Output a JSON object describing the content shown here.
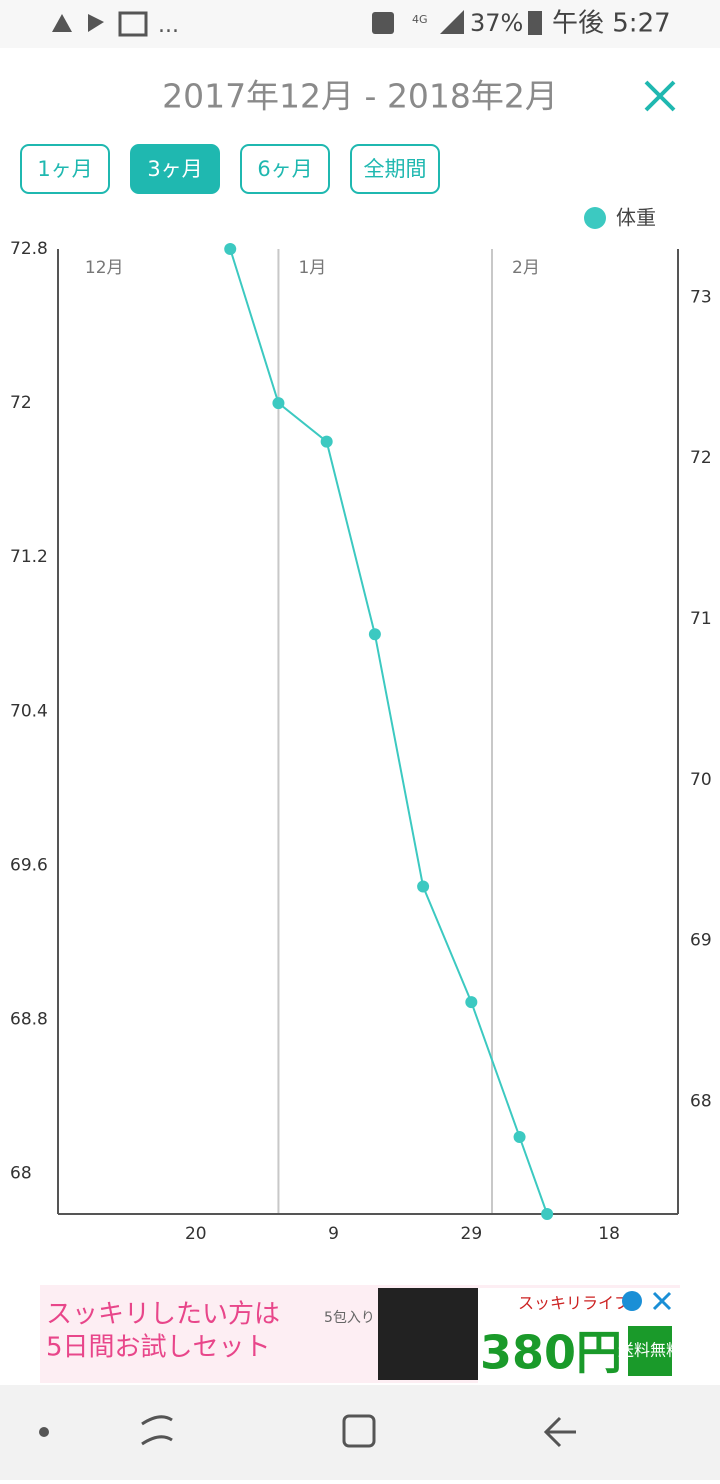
{
  "status_bar": {
    "more": "...",
    "network": "4G",
    "battery": "37%",
    "time": "午後 5:27"
  },
  "header": {
    "title": "2017年12月 - 2018年2月"
  },
  "range_tabs": [
    {
      "label": "1ヶ月",
      "selected": false
    },
    {
      "label": "3ヶ月",
      "selected": true
    },
    {
      "label": "6ヶ月",
      "selected": false
    },
    {
      "label": "全期間",
      "selected": false
    }
  ],
  "chart_data": {
    "type": "line",
    "x": [
      "2017-12-25",
      "2018-01-01",
      "2018-01-08",
      "2018-01-15",
      "2018-01-22",
      "2018-01-29",
      "2018-02-05",
      "2018-02-09"
    ],
    "series": [
      {
        "name": "体重",
        "color": "#3cc9c1",
        "values": [
          72.8,
          72.0,
          71.8,
          70.8,
          69.49,
          68.89,
          68.19,
          67.79
        ]
      }
    ],
    "xlim": [
      "2017-11-30",
      "2018-02-28"
    ],
    "xticks": [
      {
        "value": "2017-12-20",
        "label": "20"
      },
      {
        "value": "2018-01-09",
        "label": "9"
      },
      {
        "value": "2018-01-29",
        "label": "29"
      },
      {
        "value": "2018-02-18",
        "label": "18"
      }
    ],
    "month_labels": [
      {
        "value": "2017-12-01",
        "label": "12月"
      },
      {
        "value": "2018-01-01",
        "label": "1月"
      },
      {
        "value": "2018-02-01",
        "label": "2月"
      }
    ],
    "ylim": [
      67.79,
      72.8
    ],
    "yticks": [
      72.8,
      72.0,
      71.2,
      70.4,
      69.6,
      68.8,
      68.0
    ],
    "y2lim": [
      67.3,
      73.3
    ],
    "y2ticks": [
      73,
      72,
      71,
      70,
      69,
      68
    ],
    "legend": "top-right"
  },
  "ad": {
    "line1": "スッキリしたい方は",
    "line2": "5日間お試しセット",
    "pack": "5包入り",
    "brand": "スッキリライフ",
    "price": "380円",
    "badge": "送料無料"
  }
}
